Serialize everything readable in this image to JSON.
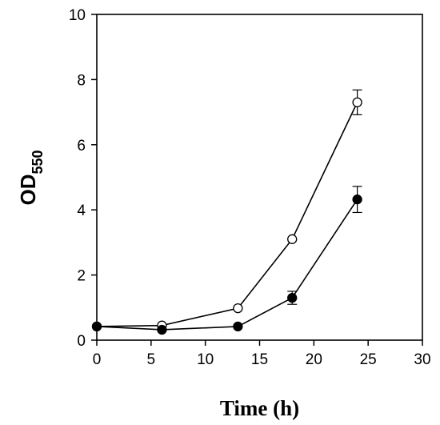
{
  "chart_data": {
    "type": "line",
    "xlabel": "Time (h)",
    "ylabel": {
      "main": "OD",
      "subscript": "550"
    },
    "xlim": [
      0,
      30
    ],
    "ylim": [
      0,
      10
    ],
    "xticks": [
      0,
      5,
      10,
      15,
      20,
      25,
      30
    ],
    "yticks": [
      0,
      2,
      4,
      6,
      8,
      10
    ],
    "grid": false,
    "series": [
      {
        "marker": "open-circle",
        "color": "#000000",
        "x": [
          0,
          6,
          13,
          18,
          24
        ],
        "y": [
          0.42,
          0.45,
          0.98,
          3.1,
          7.3
        ],
        "yerr": [
          0,
          0,
          0,
          0,
          0.38
        ]
      },
      {
        "marker": "filled-circle",
        "color": "#000000",
        "x": [
          0,
          6,
          13,
          18,
          24
        ],
        "y": [
          0.42,
          0.32,
          0.42,
          1.3,
          4.32
        ],
        "yerr": [
          0,
          0,
          0,
          0.2,
          0.4
        ]
      }
    ]
  }
}
